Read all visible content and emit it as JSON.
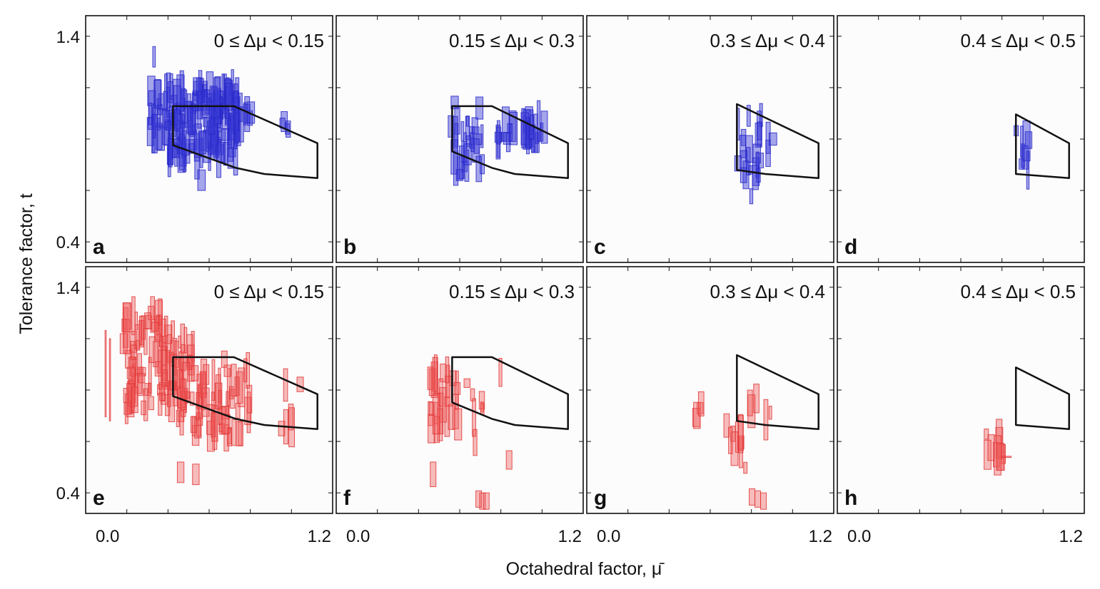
{
  "figure": {
    "ylabel": "Tolerance factor, t",
    "xlabel": "Octahedral factor, μ̄"
  },
  "colors": {
    "top_row": "#3c3cd7",
    "bottom_row": "#f05a5a",
    "region": "#111111"
  },
  "chart_data": [
    {
      "panel": "a",
      "type": "scatter",
      "row_color": "blue",
      "title": "0 ≤ Δμ < 0.15",
      "xlim": [
        -0.05,
        1.25
      ],
      "ylim": [
        0.3,
        1.5
      ],
      "x_ticks": [
        "0.0",
        "1.2"
      ],
      "y_ticks": [
        "0.4",
        "1.4"
      ],
      "show_y_ticks": true,
      "region": [
        [
          0.41,
          1.06
        ],
        [
          0.73,
          1.06
        ],
        [
          1.17,
          0.88
        ],
        [
          1.17,
          0.71
        ],
        [
          0.89,
          0.73
        ],
        [
          0.74,
          0.76
        ],
        [
          0.41,
          0.87
        ]
      ],
      "clusters": [
        {
          "xmin": 0.38,
          "xmax": 0.75,
          "ymin": 0.8,
          "ymax": 1.16,
          "count": 160
        },
        {
          "xmin": 0.28,
          "xmax": 0.41,
          "ymin": 0.9,
          "ymax": 1.14,
          "count": 25
        },
        {
          "xmin": 0.72,
          "xmax": 0.82,
          "ymin": 0.94,
          "ymax": 1.06,
          "count": 15
        },
        {
          "xmin": 0.97,
          "xmax": 1.02,
          "ymin": 0.92,
          "ymax": 0.99,
          "count": 4
        }
      ],
      "boxes": [
        {
          "x": 0.31,
          "y": 1.3,
          "w": 0.014,
          "h": 0.1
        },
        {
          "x": 0.56,
          "y": 0.7,
          "w": 0.04,
          "h": 0.1
        }
      ]
    },
    {
      "panel": "b",
      "type": "scatter",
      "row_color": "blue",
      "title": "0.15 ≤ Δμ < 0.3",
      "xlim": [
        -0.05,
        1.25
      ],
      "ylim": [
        0.3,
        1.5
      ],
      "x_ticks": [
        "0.0",
        "1.2"
      ],
      "y_ticks": [
        "0.4",
        "1.4"
      ],
      "show_y_ticks": false,
      "region": [
        [
          0.56,
          1.06
        ],
        [
          0.77,
          1.06
        ],
        [
          1.17,
          0.88
        ],
        [
          1.17,
          0.71
        ],
        [
          0.89,
          0.73
        ],
        [
          0.77,
          0.76
        ],
        [
          0.56,
          0.84
        ]
      ],
      "clusters": [
        {
          "xmin": 0.55,
          "xmax": 0.72,
          "ymin": 0.72,
          "ymax": 1.1,
          "count": 30
        },
        {
          "xmin": 0.8,
          "xmax": 1.05,
          "ymin": 0.88,
          "ymax": 0.99,
          "count": 30
        }
      ],
      "boxes": []
    },
    {
      "panel": "c",
      "type": "scatter",
      "row_color": "blue",
      "title": "0.3 ≤ Δμ < 0.4",
      "xlim": [
        -0.05,
        1.25
      ],
      "ylim": [
        0.3,
        1.5
      ],
      "x_ticks": [
        "0.0",
        "1.2"
      ],
      "y_ticks": [
        "0.4",
        "1.4"
      ],
      "show_y_ticks": false,
      "region": [
        [
          0.74,
          1.07
        ],
        [
          1.17,
          0.88
        ],
        [
          1.17,
          0.71
        ],
        [
          0.89,
          0.73
        ],
        [
          0.74,
          0.75
        ]
      ],
      "clusters": [
        {
          "xmin": 0.74,
          "xmax": 0.91,
          "ymin": 0.74,
          "ymax": 1.03,
          "count": 18
        },
        {
          "xmin": 0.72,
          "xmax": 0.89,
          "ymin": 0.62,
          "ymax": 0.78,
          "count": 6
        }
      ],
      "boxes": [
        {
          "x": 0.93,
          "y": 0.9,
          "w": 0.04,
          "h": 0.06
        }
      ]
    },
    {
      "panel": "d",
      "type": "scatter",
      "row_color": "blue",
      "title": "0.4 ≤ Δμ < 0.5",
      "xlim": [
        -0.05,
        1.25
      ],
      "ylim": [
        0.3,
        1.5
      ],
      "x_ticks": [
        "0.0",
        "1.2"
      ],
      "y_ticks": [
        "0.4",
        "1.4"
      ],
      "show_y_ticks": false,
      "region": [
        [
          0.89,
          1.02
        ],
        [
          1.17,
          0.88
        ],
        [
          1.17,
          0.71
        ],
        [
          0.89,
          0.73
        ]
      ],
      "clusters": [
        {
          "xmin": 0.89,
          "xmax": 0.96,
          "ymin": 0.72,
          "ymax": 0.97,
          "count": 8
        }
      ],
      "boxes": []
    },
    {
      "panel": "e",
      "type": "scatter",
      "row_color": "red",
      "title": "0 ≤ Δμ < 0.15",
      "xlim": [
        -0.05,
        1.25
      ],
      "ylim": [
        0.3,
        1.5
      ],
      "x_ticks": [
        "0.0",
        "1.2"
      ],
      "y_ticks": [
        "0.4",
        "1.4"
      ],
      "show_y_ticks": true,
      "region": [
        [
          0.41,
          1.06
        ],
        [
          0.73,
          1.06
        ],
        [
          1.17,
          0.88
        ],
        [
          1.17,
          0.71
        ],
        [
          0.89,
          0.73
        ],
        [
          0.74,
          0.76
        ],
        [
          0.41,
          0.87
        ]
      ],
      "clusters": [
        {
          "xmin": 0.15,
          "xmax": 0.52,
          "ymin": 0.8,
          "ymax": 1.28,
          "count": 110
        },
        {
          "xmin": 0.42,
          "xmax": 0.82,
          "ymin": 0.66,
          "ymax": 1.0,
          "count": 60
        },
        {
          "xmin": 0.98,
          "xmax": 1.08,
          "ymin": 0.66,
          "ymax": 0.93,
          "count": 6
        }
      ],
      "boxes": [
        {
          "x": 0.055,
          "y": 0.98,
          "w": 0.006,
          "h": 0.42
        },
        {
          "x": 0.078,
          "y": 0.95,
          "w": 0.006,
          "h": 0.4
        },
        {
          "x": 0.45,
          "y": 0.5,
          "w": 0.035,
          "h": 0.1
        },
        {
          "x": 0.53,
          "y": 0.49,
          "w": 0.035,
          "h": 0.1
        },
        {
          "x": 0.68,
          "y": 1.05,
          "w": 0.03,
          "h": 0.08
        }
      ]
    },
    {
      "panel": "f",
      "type": "scatter",
      "row_color": "red",
      "title": "0.15 ≤ Δμ < 0.3",
      "xlim": [
        -0.05,
        1.25
      ],
      "ylim": [
        0.3,
        1.5
      ],
      "x_ticks": [
        "0.0",
        "1.2"
      ],
      "y_ticks": [
        "0.4",
        "1.4"
      ],
      "show_y_ticks": false,
      "region": [
        [
          0.56,
          1.06
        ],
        [
          0.77,
          1.06
        ],
        [
          1.17,
          0.88
        ],
        [
          1.17,
          0.71
        ],
        [
          0.89,
          0.73
        ],
        [
          0.77,
          0.76
        ],
        [
          0.56,
          0.84
        ]
      ],
      "clusters": [
        {
          "xmin": 0.44,
          "xmax": 0.6,
          "ymin": 0.7,
          "ymax": 1.0,
          "count": 26
        },
        {
          "xmin": 0.6,
          "xmax": 0.82,
          "ymin": 0.6,
          "ymax": 1.08,
          "count": 8
        }
      ],
      "boxes": [
        {
          "x": 0.7,
          "y": 0.37,
          "w": 0.03,
          "h": 0.08
        },
        {
          "x": 0.72,
          "y": 0.36,
          "w": 0.03,
          "h": 0.08
        },
        {
          "x": 0.74,
          "y": 0.36,
          "w": 0.03,
          "h": 0.08
        },
        {
          "x": 0.46,
          "y": 0.49,
          "w": 0.03,
          "h": 0.12
        },
        {
          "x": 0.86,
          "y": 0.56,
          "w": 0.03,
          "h": 0.09
        }
      ]
    },
    {
      "panel": "g",
      "type": "scatter",
      "row_color": "red",
      "title": "0.3 ≤ Δμ < 0.4",
      "xlim": [
        -0.05,
        1.25
      ],
      "ylim": [
        0.3,
        1.5
      ],
      "x_ticks": [
        "0.0",
        "1.2"
      ],
      "y_ticks": [
        "0.4",
        "1.4"
      ],
      "show_y_ticks": false,
      "region": [
        [
          0.74,
          1.07
        ],
        [
          1.17,
          0.88
        ],
        [
          1.17,
          0.71
        ],
        [
          0.89,
          0.73
        ],
        [
          0.74,
          0.75
        ]
      ],
      "clusters": [
        {
          "xmin": 0.52,
          "xmax": 0.56,
          "ymin": 0.76,
          "ymax": 0.86,
          "count": 4
        },
        {
          "xmin": 0.68,
          "xmax": 0.82,
          "ymin": 0.52,
          "ymax": 0.73,
          "count": 10
        },
        {
          "xmin": 0.8,
          "xmax": 0.92,
          "ymin": 0.74,
          "ymax": 0.86,
          "count": 5
        }
      ],
      "boxes": [
        {
          "x": 0.82,
          "y": 0.38,
          "w": 0.03,
          "h": 0.08
        },
        {
          "x": 0.85,
          "y": 0.37,
          "w": 0.03,
          "h": 0.08
        },
        {
          "x": 0.88,
          "y": 0.36,
          "w": 0.03,
          "h": 0.08
        }
      ]
    },
    {
      "panel": "h",
      "type": "scatter",
      "row_color": "red",
      "title": "0.4 ≤ Δμ < 0.5",
      "xlim": [
        -0.05,
        1.25
      ],
      "ylim": [
        0.3,
        1.5
      ],
      "x_ticks": [
        "0.0",
        "1.2"
      ],
      "y_ticks": [
        "0.4",
        "1.4"
      ],
      "show_y_ticks": false,
      "region": [
        [
          0.89,
          1.01
        ],
        [
          1.17,
          0.88
        ],
        [
          1.17,
          0.71
        ],
        [
          0.89,
          0.73
        ]
      ],
      "clusters": [
        {
          "xmin": 0.73,
          "xmax": 0.83,
          "ymin": 0.56,
          "ymax": 0.71,
          "count": 10
        }
      ],
      "boxes": [
        {
          "x": 0.84,
          "y": 0.575,
          "w": 0.05,
          "h": 0.006
        }
      ]
    }
  ]
}
